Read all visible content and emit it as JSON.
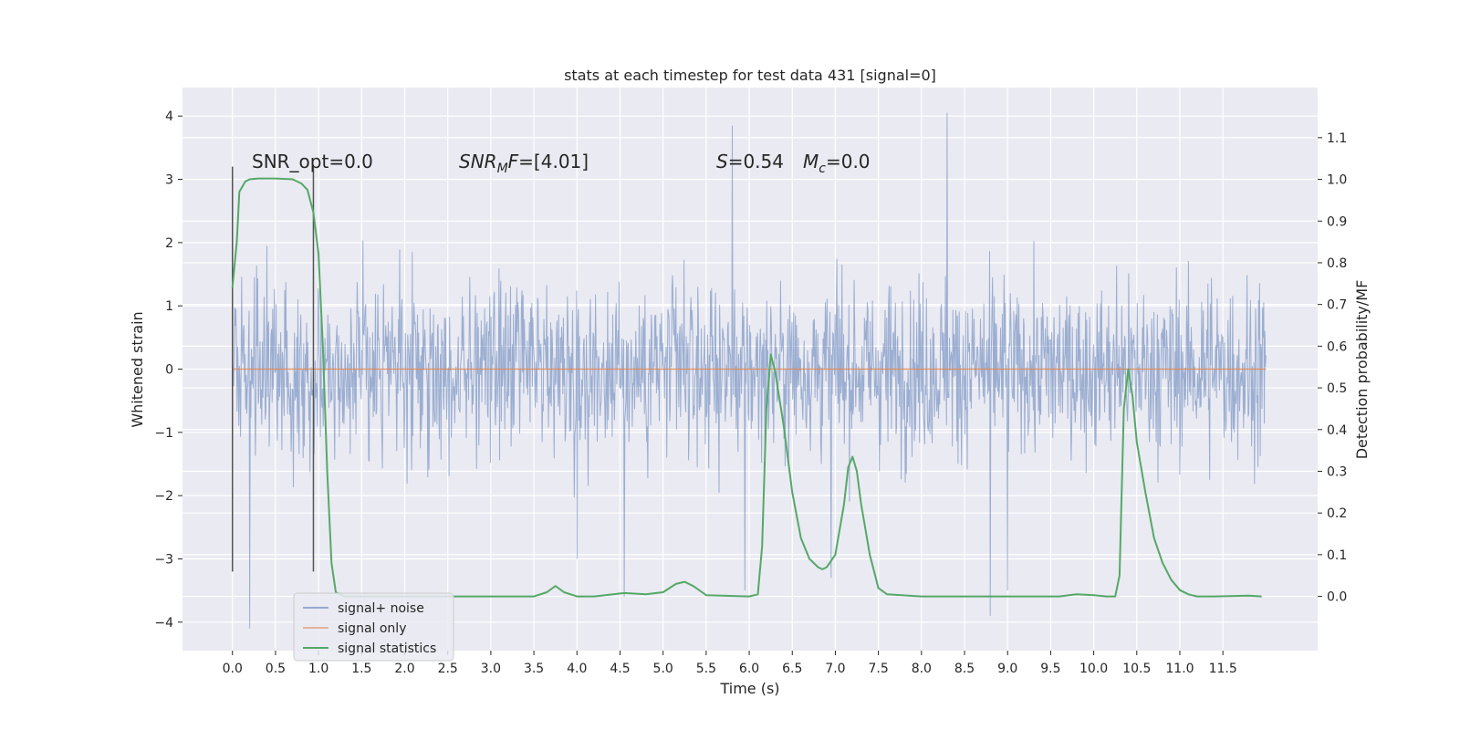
{
  "chart_data": {
    "type": "line",
    "title": "stats at each timestep for test data 431 [signal=0]",
    "xlabel": "Time (s)",
    "ylabel_left": "Whitened strain",
    "ylabel_right": "Detection probability/MF",
    "xlim": [
      -0.58,
      12.6
    ],
    "ylim_left": [
      -4.45,
      4.45
    ],
    "ylim_right": [
      -0.13,
      1.22
    ],
    "x_ticks": [
      "0.0",
      "0.5",
      "1.0",
      "1.5",
      "2.0",
      "2.5",
      "3.0",
      "3.5",
      "4.0",
      "4.5",
      "5.0",
      "5.5",
      "6.0",
      "6.5",
      "7.0",
      "7.5",
      "8.0",
      "8.5",
      "9.0",
      "9.5",
      "10.0",
      "10.5",
      "11.0",
      "11.5"
    ],
    "y_ticks_left": [
      "4",
      "3",
      "2",
      "1",
      "0",
      "−1",
      "−2",
      "−3",
      "−4"
    ],
    "y_ticks_right": [
      "1.1",
      "1.0",
      "0.9",
      "0.8",
      "0.7",
      "0.6",
      "0.5",
      "0.4",
      "0.3",
      "0.2",
      "0.1",
      "0.0"
    ],
    "grid": true,
    "legend_position": "lower-left",
    "annotations": {
      "snr_opt": "SNR_opt=0.0",
      "snr_mf": "SNR_MF=[4.01]",
      "s_value": "S=0.54",
      "mc_value": "M_c=0.0"
    },
    "window_markers_x": [
      0.0,
      0.94
    ],
    "window_markers_ylim": [
      -3.2,
      3.2
    ],
    "series": [
      {
        "name": "signal+ noise",
        "color": "#4c72b0",
        "axis": "left",
        "x_range": [
          0.0,
          12.0
        ],
        "noise_band_typical": [
          -1.9,
          1.9
        ],
        "notable_peaks": [
          {
            "x": 0.2,
            "y": -4.1
          },
          {
            "x": 4.0,
            "y": -3.0
          },
          {
            "x": 4.55,
            "y": -3.6
          },
          {
            "x": 5.8,
            "y": 3.85
          },
          {
            "x": 5.95,
            "y": -3.5
          },
          {
            "x": 6.95,
            "y": -3.3
          },
          {
            "x": 8.3,
            "y": 4.05
          },
          {
            "x": 8.8,
            "y": -3.9
          },
          {
            "x": 9.0,
            "y": -3.5
          }
        ]
      },
      {
        "name": "signal only",
        "color": "#dd8452",
        "axis": "left",
        "x": [
          0.0,
          12.0
        ],
        "y": [
          0.0,
          0.0
        ]
      },
      {
        "name": "signal statistics",
        "color": "#55a868",
        "axis": "right",
        "x": [
          0.0,
          0.05,
          0.08,
          0.15,
          0.2,
          0.3,
          0.5,
          0.7,
          0.8,
          0.87,
          0.94,
          1.0,
          1.05,
          1.1,
          1.15,
          1.2,
          1.3,
          2.0,
          3.0,
          3.5,
          3.65,
          3.75,
          3.85,
          4.0,
          4.2,
          4.55,
          4.8,
          5.0,
          5.15,
          5.25,
          5.35,
          5.5,
          6.0,
          6.1,
          6.15,
          6.2,
          6.25,
          6.3,
          6.4,
          6.5,
          6.6,
          6.7,
          6.8,
          6.85,
          6.9,
          7.0,
          7.1,
          7.15,
          7.2,
          7.25,
          7.3,
          7.4,
          7.5,
          7.6,
          8.0,
          9.0,
          9.6,
          9.8,
          10.0,
          10.15,
          10.25,
          10.3,
          10.35,
          10.4,
          10.45,
          10.5,
          10.6,
          10.7,
          10.8,
          10.9,
          11.0,
          11.1,
          11.2,
          11.4,
          11.8,
          11.95
        ],
        "y": [
          0.74,
          0.85,
          0.97,
          0.995,
          1.0,
          1.002,
          1.002,
          1.0,
          0.99,
          0.975,
          0.92,
          0.82,
          0.6,
          0.3,
          0.08,
          0.01,
          0.0,
          0.0,
          0.0,
          0.0,
          0.01,
          0.025,
          0.01,
          0.0,
          0.0,
          0.008,
          0.005,
          0.01,
          0.03,
          0.035,
          0.025,
          0.003,
          0.0,
          0.005,
          0.12,
          0.45,
          0.58,
          0.54,
          0.41,
          0.25,
          0.14,
          0.09,
          0.07,
          0.065,
          0.07,
          0.1,
          0.22,
          0.31,
          0.335,
          0.3,
          0.22,
          0.1,
          0.02,
          0.005,
          0.0,
          0.0,
          0.0,
          0.005,
          0.003,
          0.0,
          0.0,
          0.05,
          0.45,
          0.545,
          0.48,
          0.37,
          0.25,
          0.14,
          0.08,
          0.04,
          0.015,
          0.005,
          0.0,
          0.0,
          0.002,
          0.0
        ]
      }
    ]
  }
}
